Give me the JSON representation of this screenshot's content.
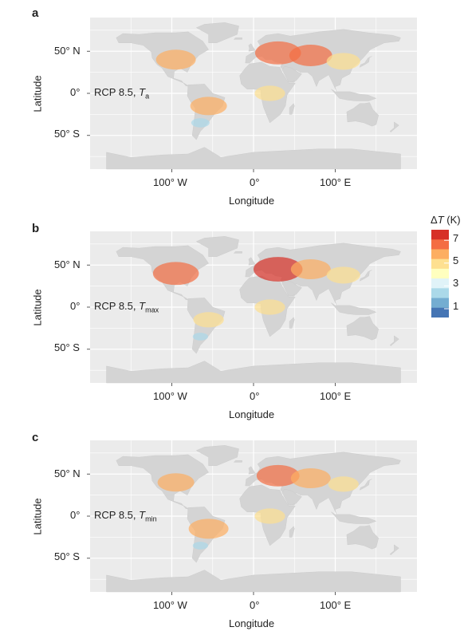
{
  "panels": [
    {
      "letter": "a",
      "scenario_prefix": "RCP 8.5, ",
      "variable_symbol": "T",
      "variable_subscript": "a",
      "xlabel": "Longitude",
      "ylabel": "Latitude",
      "xticks": [
        "100° W",
        "0°",
        "100° E"
      ],
      "yticks": [
        "50° N",
        "0°",
        "50° S"
      ],
      "hotspots": [
        {
          "region": "north-america",
          "lon": -95,
          "lat": 40,
          "dT": 6.0
        },
        {
          "region": "south-america",
          "lon": -55,
          "lat": -15,
          "dT": 5.5
        },
        {
          "region": "europe",
          "lon": 30,
          "lat": 48,
          "dT": 7.0
        },
        {
          "region": "central-asia",
          "lon": 70,
          "lat": 45,
          "dT": 6.5
        },
        {
          "region": "china",
          "lon": 110,
          "lat": 38,
          "dT": 5.0
        },
        {
          "region": "africa",
          "lon": 20,
          "lat": 0,
          "dT": 4.5
        },
        {
          "region": "southern-south-america",
          "lon": -65,
          "lat": -35,
          "dT": 2.5
        }
      ]
    },
    {
      "letter": "b",
      "scenario_prefix": "RCP 8.5, ",
      "variable_symbol": "T",
      "variable_subscript": "max",
      "xlabel": "Longitude",
      "ylabel": "Latitude",
      "xticks": [
        "100° W",
        "0°",
        "100° E"
      ],
      "yticks": [
        "50° N",
        "0°",
        "50° S"
      ],
      "hotspots": [
        {
          "region": "north-america",
          "lon": -95,
          "lat": 40,
          "dT": 7.0
        },
        {
          "region": "south-america",
          "lon": -55,
          "lat": -15,
          "dT": 4.5
        },
        {
          "region": "europe",
          "lon": 30,
          "lat": 45,
          "dT": 7.5
        },
        {
          "region": "central-asia",
          "lon": 70,
          "lat": 45,
          "dT": 6.0
        },
        {
          "region": "china",
          "lon": 110,
          "lat": 38,
          "dT": 5.0
        },
        {
          "region": "africa",
          "lon": 20,
          "lat": 0,
          "dT": 4.5
        },
        {
          "region": "southern-south-america",
          "lon": -65,
          "lat": -35,
          "dT": 2.0
        }
      ]
    },
    {
      "letter": "c",
      "scenario_prefix": "RCP 8.5, ",
      "variable_symbol": "T",
      "variable_subscript": "min",
      "xlabel": "Longitude",
      "ylabel": "Latitude",
      "xticks": [
        "100° W",
        "0°",
        "100° E"
      ],
      "yticks": [
        "50° N",
        "0°",
        "50° S"
      ],
      "hotspots": [
        {
          "region": "north-america",
          "lon": -95,
          "lat": 40,
          "dT": 5.5
        },
        {
          "region": "south-america",
          "lon": -55,
          "lat": -15,
          "dT": 6.0
        },
        {
          "region": "europe",
          "lon": 30,
          "lat": 48,
          "dT": 6.5
        },
        {
          "region": "central-asia",
          "lon": 70,
          "lat": 45,
          "dT": 6.0
        },
        {
          "region": "china",
          "lon": 110,
          "lat": 38,
          "dT": 4.5
        },
        {
          "region": "africa",
          "lon": 20,
          "lat": 0,
          "dT": 4.5
        },
        {
          "region": "southern-south-america",
          "lon": -65,
          "lat": -35,
          "dT": 2.0
        }
      ]
    }
  ],
  "legend": {
    "title_prefix": "Δ",
    "title_symbol": "T",
    "title_unit": " (K)",
    "ticks": [
      "7",
      "5",
      "3",
      "1"
    ],
    "colors": [
      "#d73027",
      "#f46d43",
      "#fdae61",
      "#fee090",
      "#ffffbf",
      "#e0f3f8",
      "#abd9e9",
      "#74add1",
      "#4575b4"
    ]
  },
  "colors": {
    "land": "#d4d4d4",
    "panel_bg": "#ebebeb",
    "grid": "#ffffff"
  }
}
